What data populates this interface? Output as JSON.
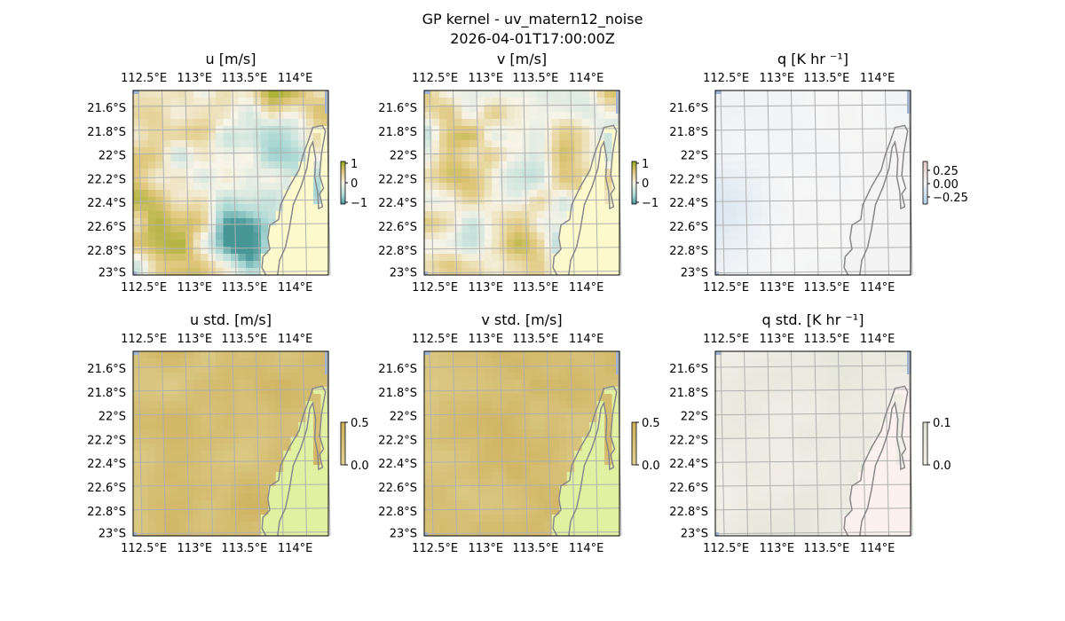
{
  "figure": {
    "title_line1": "GP kernel - uv_matern12_noise",
    "title_line2": "2026-04-01T17:00:00Z"
  },
  "chart_data": [
    {
      "type": "heatmap",
      "id": "u",
      "title": "u [m/s]",
      "colormap": "diverging-brown-white-teal",
      "x_ticks": [
        "112.5°E",
        "113°E",
        "113.5°E",
        "114°E"
      ],
      "y_ticks": [
        "21.6°S",
        "21.8°S",
        "22°S",
        "22.2°S",
        "22.4°S",
        "22.6°S",
        "22.8°S",
        "23°S"
      ],
      "xlim": [
        112.5,
        114.1
      ],
      "ylim": [
        -23.0,
        -21.5
      ],
      "colorbar": {
        "ticks": [
          "1",
          "0",
          "−1"
        ],
        "range": [
          -1,
          1
        ]
      },
      "grid": true
    },
    {
      "type": "heatmap",
      "id": "v",
      "title": "v [m/s]",
      "colormap": "diverging-brown-white-teal",
      "x_ticks": [
        "112.5°E",
        "113°E",
        "113.5°E",
        "114°E"
      ],
      "y_ticks": [
        "21.6°S",
        "21.8°S",
        "22°S",
        "22.2°S",
        "22.4°S",
        "22.6°S",
        "22.8°S",
        "23°S"
      ],
      "xlim": [
        112.5,
        114.1
      ],
      "ylim": [
        -23.0,
        -21.5
      ],
      "colorbar": {
        "ticks": [
          "1",
          "0",
          "−1"
        ],
        "range": [
          -1,
          1
        ]
      },
      "grid": true
    },
    {
      "type": "heatmap",
      "id": "q",
      "title": "q [K hr ⁻¹]",
      "colormap": "diverging-red-white-blue",
      "x_ticks": [
        "112.5°E",
        "113°E",
        "113.5°E",
        "114°E"
      ],
      "y_ticks": [
        "21.6°S",
        "21.8°S",
        "22°S",
        "22.2°S",
        "22.4°S",
        "22.6°S",
        "22.8°S",
        "23°S"
      ],
      "xlim": [
        112.5,
        114.1
      ],
      "ylim": [
        -23.0,
        -21.5
      ],
      "colorbar": {
        "ticks": [
          "0.25",
          "0.00",
          "−0.25"
        ],
        "range": [
          -0.25,
          0.25
        ]
      },
      "grid": true
    },
    {
      "type": "heatmap",
      "id": "u_std",
      "title": "u std. [m/s]",
      "colormap": "sequential-olive",
      "x_ticks": [
        "112.5°E",
        "113°E",
        "113.5°E",
        "114°E"
      ],
      "y_ticks": [
        "21.6°S",
        "21.8°S",
        "22°S",
        "22.2°S",
        "22.4°S",
        "22.6°S",
        "22.8°S",
        "23°S"
      ],
      "xlim": [
        112.5,
        114.1
      ],
      "ylim": [
        -23.0,
        -21.5
      ],
      "colorbar": {
        "ticks": [
          "0.5",
          "0.0"
        ],
        "range": [
          0,
          0.5
        ]
      },
      "grid": true
    },
    {
      "type": "heatmap",
      "id": "v_std",
      "title": "v std. [m/s]",
      "colormap": "sequential-olive",
      "x_ticks": [
        "112.5°E",
        "113°E",
        "113.5°E",
        "114°E"
      ],
      "y_ticks": [
        "21.6°S",
        "21.8°S",
        "22°S",
        "22.2°S",
        "22.4°S",
        "22.6°S",
        "22.8°S",
        "23°S"
      ],
      "xlim": [
        112.5,
        114.1
      ],
      "ylim": [
        -23.0,
        -21.5
      ],
      "colorbar": {
        "ticks": [
          "0.5",
          "0.0"
        ],
        "range": [
          0,
          0.5
        ]
      },
      "grid": true
    },
    {
      "type": "heatmap",
      "id": "q_std",
      "title": "q std. [K hr ⁻¹]",
      "colormap": "sequential-pale",
      "x_ticks": [
        "112.5°E",
        "113°E",
        "113.5°E",
        "114°E"
      ],
      "y_ticks": [
        "21.6°S",
        "21.8°S",
        "22°S",
        "22.2°S",
        "22.4°S",
        "22.6°S",
        "22.8°S",
        "23°S"
      ],
      "xlim": [
        112.5,
        114.1
      ],
      "ylim": [
        -23.0,
        -21.5
      ],
      "colorbar": {
        "ticks": [
          "0.1",
          "0.0"
        ],
        "range": [
          0,
          0.1
        ]
      },
      "grid": true
    }
  ]
}
